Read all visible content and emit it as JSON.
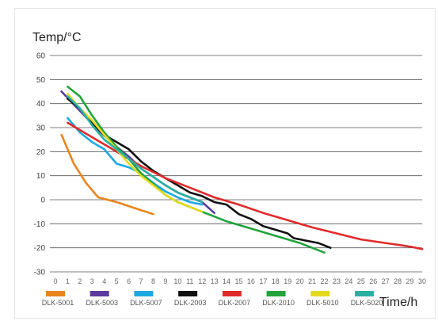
{
  "chart_data": {
    "type": "line",
    "ylabel": "Temp/°C",
    "xlabel": "Time/h",
    "xlim": [
      0,
      30
    ],
    "ylim": [
      -30,
      60
    ],
    "x_ticks": [
      0,
      1,
      2,
      3,
      4,
      5,
      6,
      7,
      8,
      9,
      10,
      11,
      12,
      13,
      14,
      15,
      16,
      17,
      18,
      19,
      20,
      21,
      22,
      23,
      24,
      25,
      26,
      27,
      28,
      29,
      30
    ],
    "y_ticks": [
      60,
      50,
      40,
      30,
      20,
      10,
      0,
      -10,
      -20,
      -30
    ],
    "grid": "horizontal",
    "legend_position": "bottom",
    "series": [
      {
        "name": "DLK-5001",
        "color": "#e8851e",
        "points": [
          [
            0.5,
            27
          ],
          [
            1.5,
            15
          ],
          [
            2.5,
            7
          ],
          [
            3.5,
            1
          ],
          [
            5,
            -1
          ],
          [
            6.5,
            -3.5
          ],
          [
            8,
            -6
          ]
        ]
      },
      {
        "name": "DLK-5003",
        "color": "#5b3a9e",
        "points": [
          [
            0.5,
            45
          ],
          [
            2,
            37
          ],
          [
            3.5,
            29
          ],
          [
            5,
            22
          ],
          [
            6,
            18
          ],
          [
            7,
            13
          ],
          [
            8,
            9.5
          ],
          [
            9,
            6
          ],
          [
            10,
            3
          ],
          [
            11,
            1
          ],
          [
            12,
            -1
          ],
          [
            13,
            -5.5
          ]
        ]
      },
      {
        "name": "DLK-5007",
        "color": "#1ca9e1",
        "points": [
          [
            1,
            34
          ],
          [
            2,
            28
          ],
          [
            3,
            24
          ],
          [
            4,
            21
          ],
          [
            5,
            15
          ],
          [
            6,
            13.5
          ],
          [
            7,
            11
          ],
          [
            8,
            7
          ],
          [
            9,
            3.5
          ],
          [
            10,
            1
          ],
          [
            11,
            -1
          ],
          [
            12,
            -2
          ]
        ]
      },
      {
        "name": "DLK-2003",
        "color": "#111111",
        "points": [
          [
            1,
            42
          ],
          [
            2,
            38
          ],
          [
            3,
            32
          ],
          [
            4,
            27
          ],
          [
            5,
            24
          ],
          [
            6,
            21
          ],
          [
            7,
            16
          ],
          [
            8,
            12
          ],
          [
            9,
            9
          ],
          [
            10,
            6
          ],
          [
            11,
            3
          ],
          [
            12,
            1.5
          ],
          [
            13,
            -1
          ],
          [
            14,
            -2
          ],
          [
            15,
            -6
          ],
          [
            16,
            -8
          ],
          [
            17,
            -11
          ],
          [
            18,
            -12.5
          ],
          [
            19,
            -14
          ],
          [
            19.5,
            -16
          ],
          [
            20.5,
            -17
          ],
          [
            21.5,
            -18
          ],
          [
            22.5,
            -20
          ]
        ]
      },
      {
        "name": "DLK-2007",
        "color": "#e02b2b",
        "points": [
          [
            1,
            32
          ],
          [
            3,
            26
          ],
          [
            5,
            20
          ],
          [
            7,
            14
          ],
          [
            9,
            9
          ],
          [
            11,
            5
          ],
          [
            13,
            1
          ],
          [
            15,
            -2
          ],
          [
            17,
            -5.5
          ],
          [
            19,
            -8.5
          ],
          [
            21,
            -11.5
          ],
          [
            23,
            -14
          ],
          [
            25,
            -16.5
          ],
          [
            27,
            -18
          ],
          [
            29,
            -19.5
          ],
          [
            30,
            -20.5
          ]
        ]
      },
      {
        "name": "DLK-2010",
        "color": "#22a33b",
        "points": [
          [
            1,
            47
          ],
          [
            2,
            43
          ],
          [
            3,
            35
          ],
          [
            4,
            28
          ],
          [
            5,
            22
          ],
          [
            6,
            17
          ],
          [
            7,
            11
          ],
          [
            8,
            6.5
          ],
          [
            9,
            2
          ],
          [
            10,
            -1
          ],
          [
            11,
            -3
          ],
          [
            12,
            -5
          ],
          [
            13,
            -7
          ],
          [
            14,
            -9
          ],
          [
            16,
            -12
          ],
          [
            18,
            -15
          ],
          [
            20,
            -18
          ],
          [
            22,
            -22
          ]
        ]
      },
      {
        "name": "DLK-5010",
        "color": "#e3da1f",
        "points": [
          [
            1,
            44
          ],
          [
            2,
            38
          ],
          [
            3,
            33
          ],
          [
            4,
            27
          ],
          [
            5,
            21
          ],
          [
            6,
            15
          ],
          [
            7,
            10
          ],
          [
            8,
            6
          ],
          [
            9,
            2
          ],
          [
            10,
            -1
          ],
          [
            11,
            -3
          ],
          [
            12,
            -5
          ]
        ]
      },
      {
        "name": "DLK-5020",
        "color": "#2bb0a4",
        "points": [
          [
            1,
            43
          ],
          [
            2,
            38
          ],
          [
            3,
            31
          ],
          [
            4,
            25
          ],
          [
            5,
            21
          ],
          [
            6,
            17
          ],
          [
            7,
            13
          ],
          [
            8,
            9.5
          ],
          [
            9,
            6
          ],
          [
            10,
            3
          ],
          [
            11,
            1
          ],
          [
            12,
            -1
          ]
        ]
      }
    ]
  }
}
